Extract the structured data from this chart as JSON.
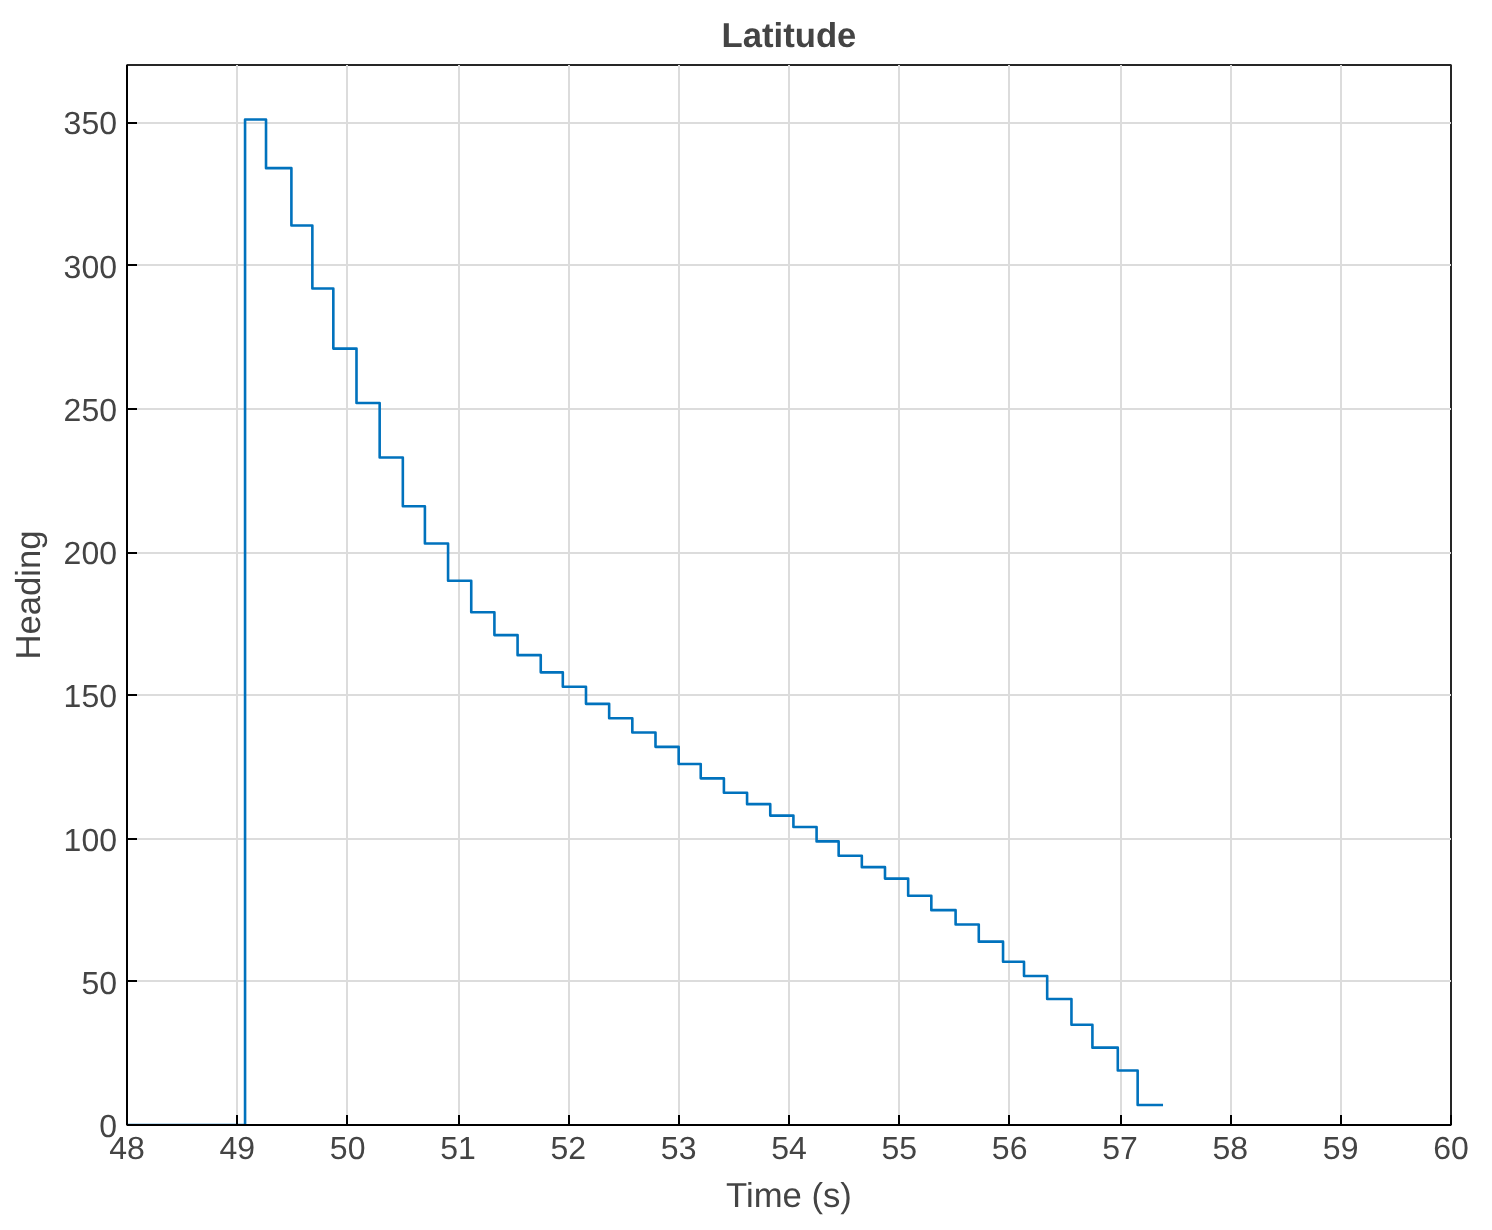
{
  "chart_data": {
    "type": "step",
    "title": "Latitude",
    "xlabel": "Time (s)",
    "ylabel": "Heading",
    "x": [
      48,
      49.07,
      49.26,
      49.49,
      49.68,
      49.87,
      50.08,
      50.29,
      50.5,
      50.7,
      50.91,
      51.12,
      51.33,
      51.54,
      51.75,
      51.95,
      52.16,
      52.37,
      52.58,
      52.79,
      53.0,
      53.2,
      53.41,
      53.62,
      53.83,
      54.04,
      54.25,
      54.45,
      54.66,
      54.87,
      55.08,
      55.29,
      55.51,
      55.72,
      55.94,
      56.13,
      56.34,
      56.56,
      56.75,
      56.98,
      57.16,
      57.39
    ],
    "series": [
      {
        "color": "#0072bd",
        "values": [
          0,
          351,
          334,
          314,
          292,
          271,
          252,
          233,
          216,
          203,
          190,
          179,
          171,
          164,
          158,
          153,
          147,
          142,
          137,
          132,
          126,
          121,
          116,
          112,
          108,
          104,
          99,
          94,
          90,
          86,
          80,
          75,
          70,
          64,
          57,
          52,
          44,
          35,
          27,
          19,
          7,
          7
        ]
      }
    ],
    "xlim": [
      48,
      60
    ],
    "xticks": [
      48,
      49,
      50,
      51,
      52,
      53,
      54,
      55,
      56,
      57,
      58,
      59,
      60
    ],
    "ylim": [
      0,
      370
    ],
    "yticks": [
      0,
      50,
      100,
      150,
      200,
      250,
      300,
      350
    ],
    "grid": true
  }
}
